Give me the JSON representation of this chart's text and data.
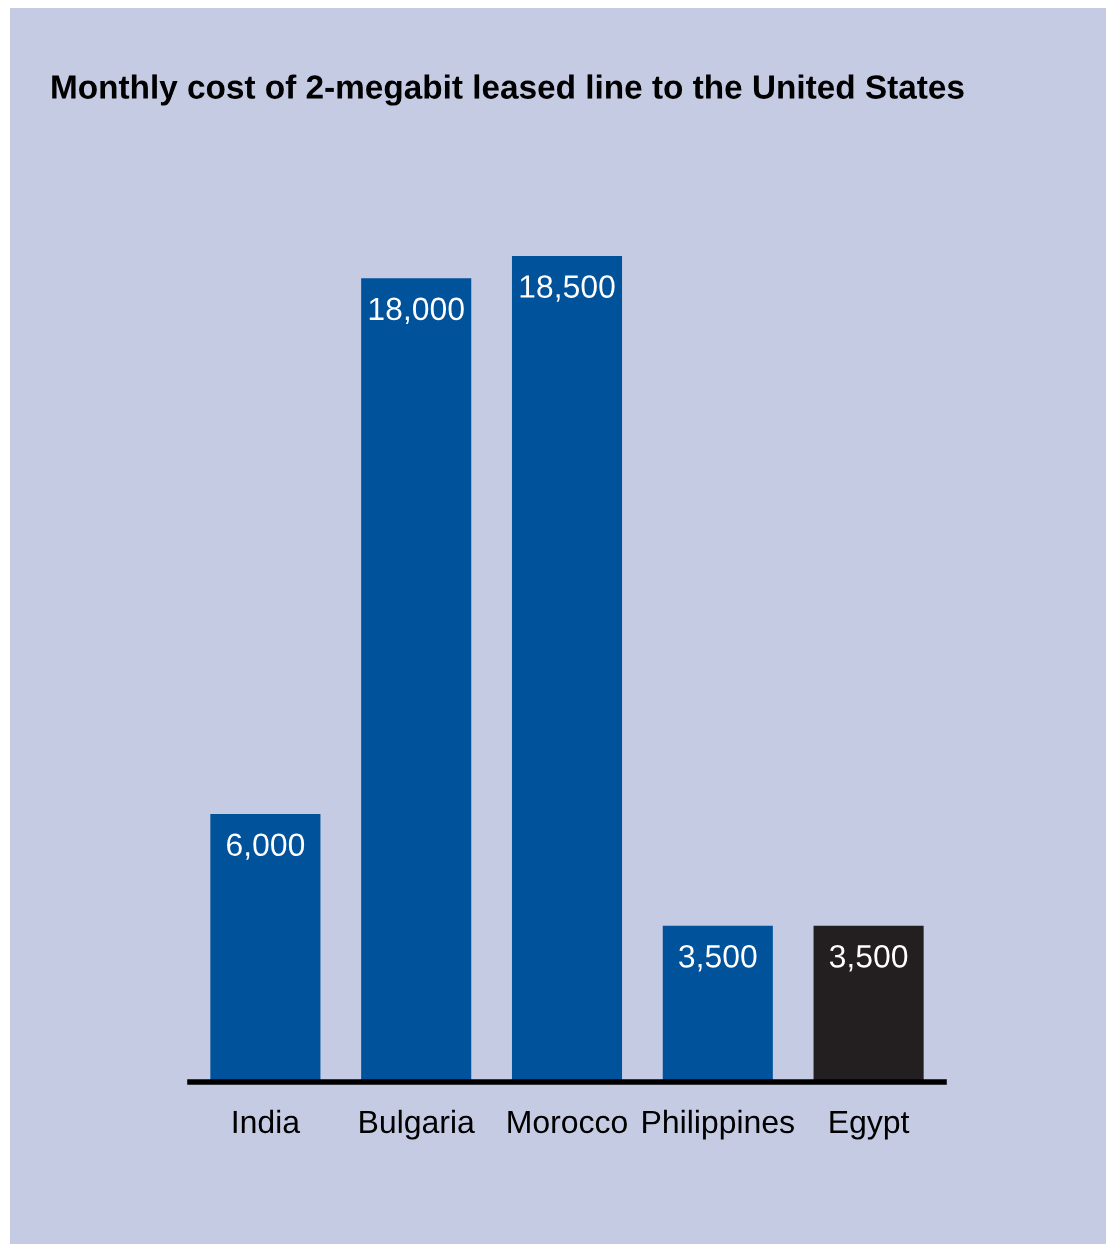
{
  "chart_data": {
    "type": "bar",
    "title": "Monthly cost of 2-megabit leased line to the United States",
    "categories": [
      "India",
      "Bulgaria",
      "Morocco",
      "Philippines",
      "Egypt"
    ],
    "values": [
      6000,
      18000,
      18500,
      3500,
      3500
    ],
    "colors": [
      "#00529b",
      "#00529b",
      "#00529b",
      "#00529b",
      "#231f20"
    ],
    "value_labels": [
      "6,000",
      "18,000",
      "18,500",
      "3,500",
      "3,500"
    ]
  }
}
